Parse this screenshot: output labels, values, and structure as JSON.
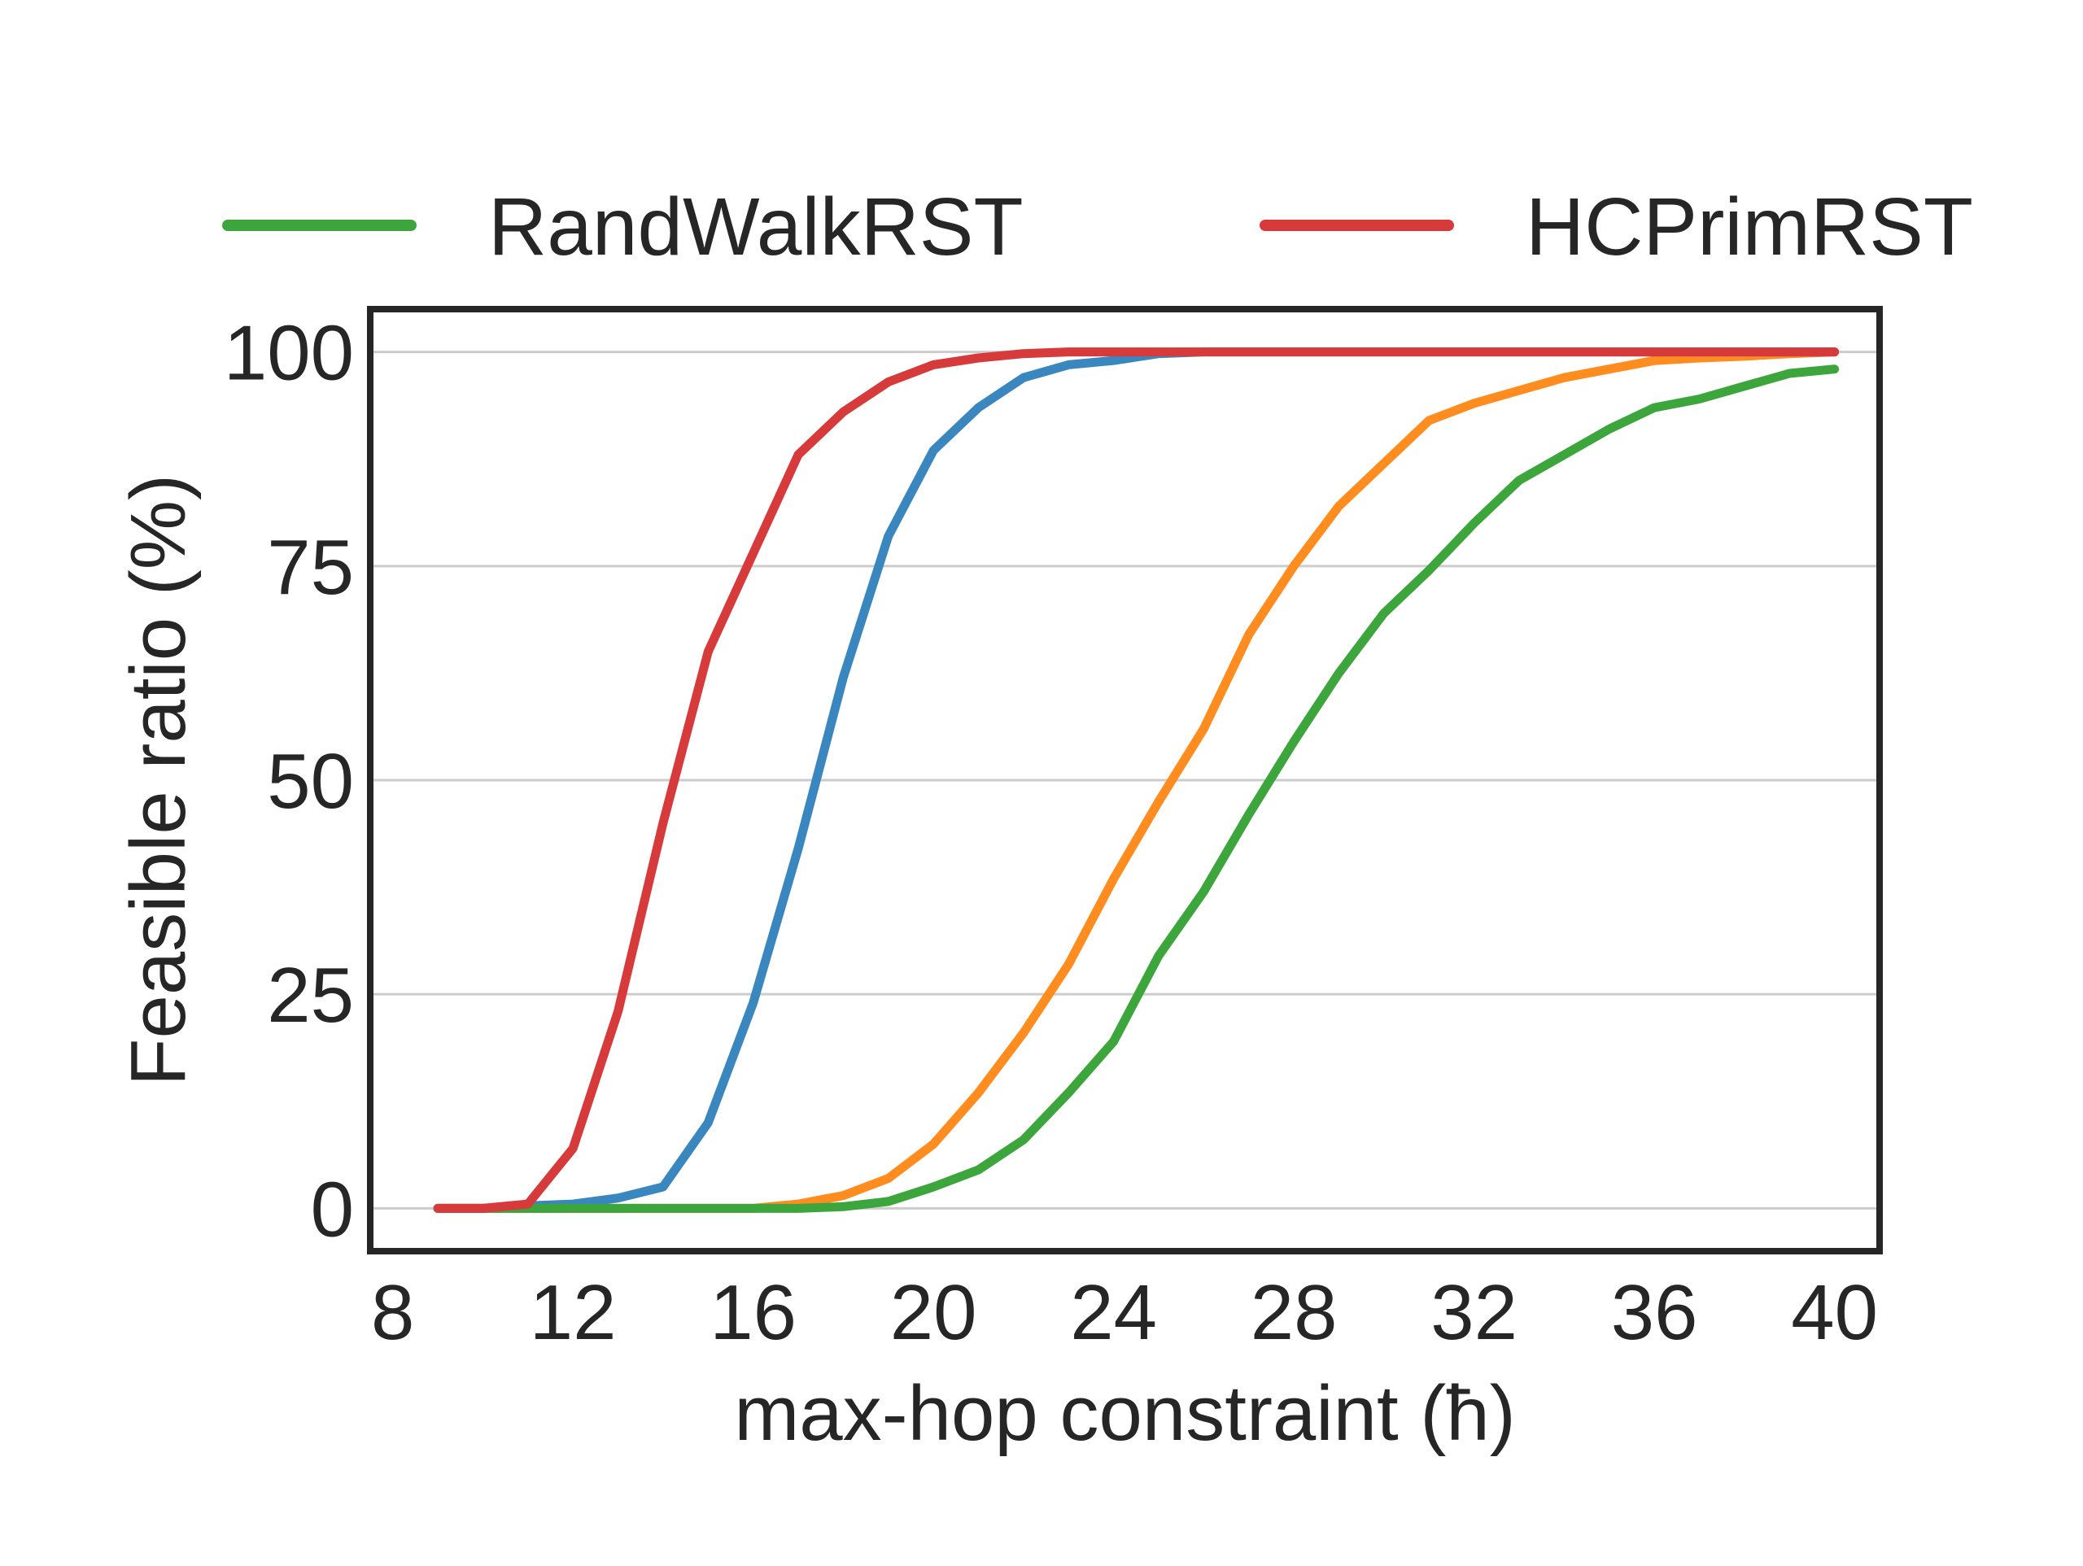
{
  "chart_data": {
    "type": "line",
    "title": "",
    "xlabel": "max-hop constraint (ħ)",
    "ylabel": "Feasible ratio (%)",
    "xlim": [
      7.5,
      41
    ],
    "ylim": [
      -5,
      105
    ],
    "xticks": [
      8,
      12,
      16,
      20,
      24,
      28,
      32,
      36,
      40
    ],
    "yticks": [
      0,
      25,
      50,
      75,
      100
    ],
    "grid": "horizontal",
    "legend_placement": "top, above plot",
    "legend": [
      {
        "label": "RandWalkRST",
        "color": "#3ca63c"
      },
      {
        "label": "HCPrimRST",
        "color": "#d63a3a"
      }
    ],
    "x": [
      9,
      10,
      11,
      12,
      13,
      14,
      15,
      16,
      17,
      18,
      19,
      20,
      21,
      22,
      23,
      24,
      25,
      26,
      27,
      28,
      29,
      30,
      31,
      32,
      33,
      34,
      35,
      36,
      37,
      38,
      39,
      40
    ],
    "series": [
      {
        "color": "#ff8c1f",
        "values": [
          0,
          0,
          0,
          0,
          0,
          0,
          0,
          0,
          0.5,
          1.5,
          3.5,
          7.5,
          13.5,
          20.5,
          28.5,
          38.5,
          47.5,
          56,
          67,
          75,
          82,
          87,
          92,
          94,
          95.5,
          97,
          98,
          99,
          99.3,
          99.5,
          99.8,
          100
        ]
      },
      {
        "color": "#3a87c0",
        "values": [
          0,
          0,
          0.3,
          0.5,
          1.2,
          2.5,
          10,
          24,
          42,
          62,
          78.5,
          88.5,
          93.5,
          97,
          98.5,
          99,
          99.8,
          100,
          100,
          100,
          100,
          100,
          100,
          100,
          100,
          100,
          100,
          100,
          100,
          100,
          100,
          100
        ]
      },
      {
        "name": "RandWalkRST",
        "color": "#3ca63c",
        "values": [
          0,
          0,
          0,
          0,
          0,
          0,
          0,
          0,
          0,
          0.2,
          0.8,
          2.5,
          4.5,
          8,
          13.5,
          19.5,
          29.5,
          37,
          46,
          54.5,
          62.5,
          69.5,
          74.5,
          80,
          85,
          88,
          91,
          93.5,
          94.5,
          96,
          97.5,
          98
        ]
      },
      {
        "name": "HCPrimRST",
        "color": "#d63a3a",
        "values": [
          0,
          0,
          0.5,
          7,
          23,
          45,
          65,
          76.5,
          88,
          93,
          96.5,
          98.5,
          99.3,
          99.8,
          100,
          100,
          100,
          100,
          100,
          100,
          100,
          100,
          100,
          100,
          100,
          100,
          100,
          100,
          100,
          100,
          100,
          100
        ]
      }
    ]
  }
}
